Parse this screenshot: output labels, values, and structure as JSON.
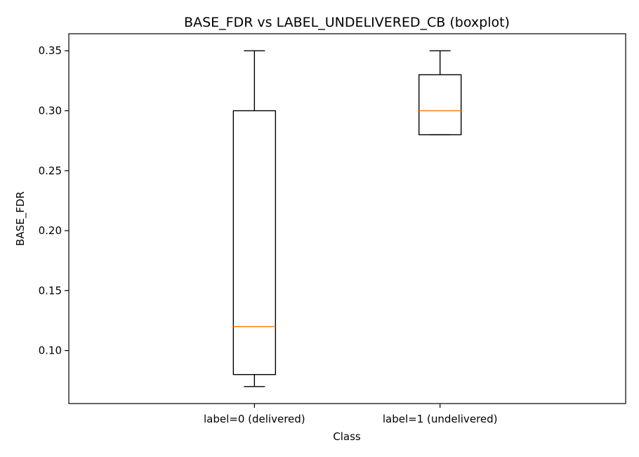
{
  "chart_data": {
    "type": "boxplot",
    "title": "BASE_FDR vs LABEL_UNDELIVERED_CB (boxplot)",
    "xlabel": "Class",
    "ylabel": "BASE_FDR",
    "categories": [
      "label=0 (delivered)",
      "label=1 (undelivered)"
    ],
    "boxes": [
      {
        "category": "label=0 (delivered)",
        "whisker_low": 0.07,
        "q1": 0.08,
        "median": 0.12,
        "q3": 0.3,
        "whisker_high": 0.35
      },
      {
        "category": "label=1 (undelivered)",
        "whisker_low": 0.28,
        "q1": 0.28,
        "median": 0.3,
        "q3": 0.33,
        "whisker_high": 0.35
      }
    ],
    "ylim": [
      0.0558,
      0.3642
    ],
    "yticks": [
      0.1,
      0.15,
      0.2,
      0.25,
      0.3,
      0.35
    ],
    "ytick_labels": [
      "0.10",
      "0.15",
      "0.20",
      "0.25",
      "0.30",
      "0.35"
    ],
    "grid": false,
    "colors": {
      "box": "#000000",
      "median": "#ff7f0e",
      "whisker": "#000000"
    }
  }
}
